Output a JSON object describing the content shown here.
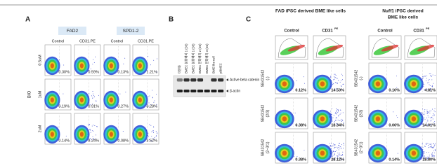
{
  "panel_a": {
    "label": "A",
    "groups": [
      "FAD2",
      "SPD1-2"
    ],
    "columns": [
      "Control",
      "CD31.PE",
      "Control",
      "CD31.PE"
    ],
    "side_label": "BIO",
    "rows": [
      {
        "label": "0.5uM",
        "percents": [
          "0.30%",
          "0.59%",
          "0.13%",
          "1.21%"
        ]
      },
      {
        "label": "1uM",
        "percents": [
          "0.19%",
          "0.91%",
          "0.27%",
          "3.28%"
        ]
      },
      {
        "label": "2uM",
        "percents": [
          "0.14%",
          "8.24%",
          "0.08%",
          "3.52%"
        ]
      }
    ]
  },
  "panel_b": {
    "label": "B",
    "lanes": [
      "미분화",
      "BMEC 분화배지 1 (D3)",
      "BMEC 분화배지 1 (D5)",
      "BMEC 분화배지 2 (D3)",
      "BMEC 분화배지 3 (D4)",
      "BME like cell",
      "pBMEC"
    ],
    "bands": [
      "Active beta catenin",
      "β-actin"
    ]
  },
  "panel_c": {
    "label": "C",
    "groups": [
      {
        "title": [
          "FAD iPSC derived BME like cells"
        ],
        "control": "Control",
        "marker": "CD31",
        "marker_sup": "PE",
        "rows": [
          {
            "name": "SB431542",
            "condition": "(-)",
            "percents": [
              "0.12%",
              "14.53%"
            ]
          },
          {
            "name": "SB431542",
            "condition": "(2/3)",
            "percents": [
              "0.38%",
              "18.34%"
            ]
          },
          {
            "name": "SB431542",
            "condition": "(2~3/1)",
            "percents": [
              "0.38%",
              "28.12%"
            ]
          }
        ]
      },
      {
        "title": [
          "Nuff1 iPSC derived",
          "BME like cells"
        ],
        "control": "Control",
        "marker": "CD31",
        "marker_sup": "PE",
        "rows": [
          {
            "name": "SB431542",
            "condition": "(-)",
            "percents": [
              "0.10%",
              "4.81%"
            ]
          },
          {
            "name": "SB431542",
            "condition": "(2/3)",
            "percents": [
              "0.06%",
              "14.01%"
            ]
          },
          {
            "name": "SB431542",
            "condition": "(2~3/1)",
            "percents": [
              "0.14%",
              "18.80%"
            ]
          }
        ]
      }
    ]
  }
}
